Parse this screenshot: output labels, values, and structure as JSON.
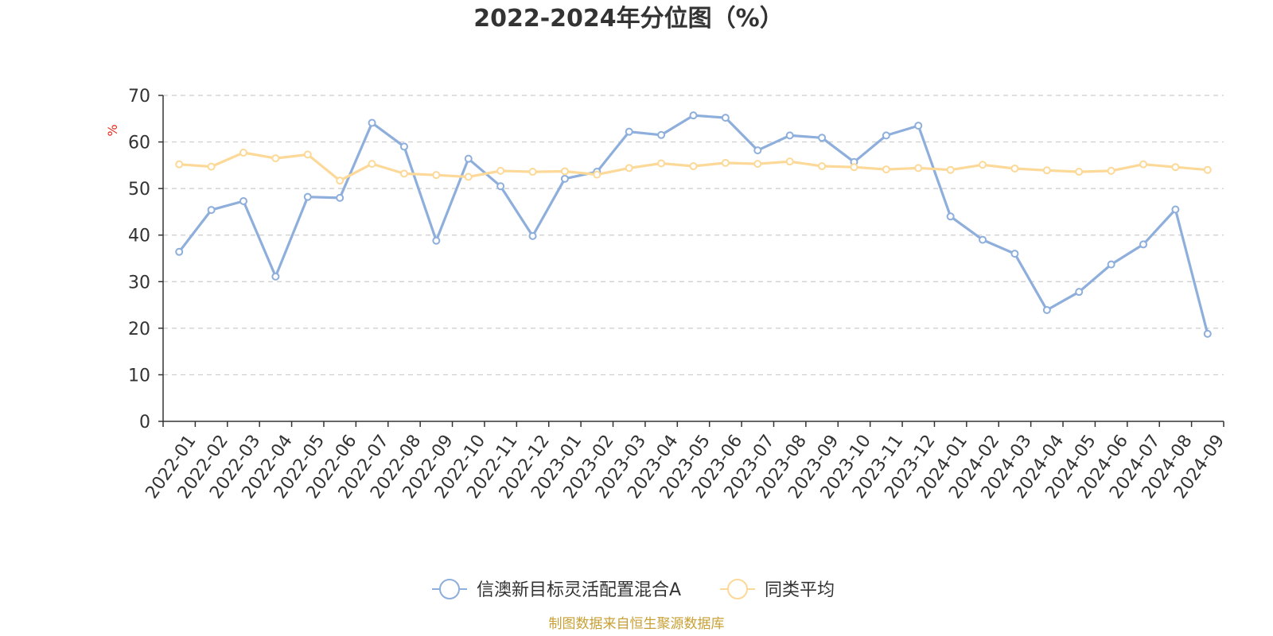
{
  "chart_data": {
    "type": "line",
    "title": "2022-2024年分位图（%）",
    "ylabel": "%",
    "xlabel": "",
    "ylim": [
      0,
      70
    ],
    "yticks": [
      0,
      10,
      20,
      30,
      40,
      50,
      60,
      70
    ],
    "grid": true,
    "legend_position": "bottom",
    "categories": [
      "2022-01",
      "2022-02",
      "2022-03",
      "2022-04",
      "2022-05",
      "2022-06",
      "2022-07",
      "2022-08",
      "2022-09",
      "2022-10",
      "2022-11",
      "2022-12",
      "2023-01",
      "2023-02",
      "2023-03",
      "2023-04",
      "2023-05",
      "2023-06",
      "2023-07",
      "2023-08",
      "2023-09",
      "2023-10",
      "2023-11",
      "2023-12",
      "2024-01",
      "2024-02",
      "2024-03",
      "2024-04",
      "2024-05",
      "2024-06",
      "2024-07",
      "2024-08",
      "2024-09"
    ],
    "series": [
      {
        "name": "信澳新目标灵活配置混合A",
        "color": "#8eaedb",
        "values": [
          36.4,
          45.4,
          47.3,
          31.1,
          48.2,
          48.0,
          64.1,
          59.0,
          38.8,
          56.4,
          50.5,
          39.8,
          52.1,
          53.6,
          62.2,
          61.5,
          65.7,
          65.2,
          58.2,
          61.4,
          60.9,
          55.7,
          61.4,
          63.5,
          44.0,
          39.0,
          36.0,
          23.9,
          27.8,
          33.7,
          38.0,
          45.5,
          18.8
        ]
      },
      {
        "name": "同类平均",
        "color": "#fcd998",
        "values": [
          55.2,
          54.7,
          57.7,
          56.5,
          57.3,
          51.7,
          55.3,
          53.2,
          52.9,
          52.5,
          53.8,
          53.6,
          53.7,
          53.0,
          54.4,
          55.4,
          54.8,
          55.5,
          55.3,
          55.8,
          54.8,
          54.6,
          54.1,
          54.4,
          54.0,
          55.1,
          54.3,
          53.9,
          53.6,
          53.8,
          55.2,
          54.6,
          54.0
        ]
      }
    ]
  },
  "footer": {
    "source": "制图数据来自恒生聚源数据库"
  },
  "colors": {
    "grid": "#cccccc",
    "axis": "#333333",
    "text": "#333333",
    "source": "#c8a035",
    "unit": "#e8271b"
  }
}
